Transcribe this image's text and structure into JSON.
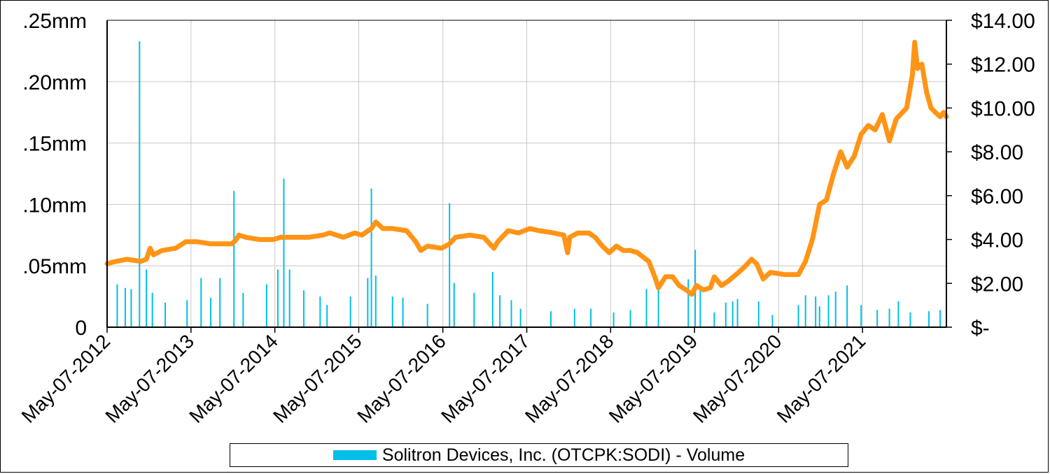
{
  "chart_data": {
    "type": "bar+line",
    "title": "",
    "colors": {
      "volume": "#00BFE8",
      "price": "#FF9416",
      "grid": "#c8c8c8",
      "axis": "#000000"
    },
    "x_range": [
      "2012-05-07",
      "2022-05-07"
    ],
    "x_ticks": [
      "May-07-2012",
      "May-07-2013",
      "May-07-2014",
      "May-07-2015",
      "May-07-2016",
      "May-07-2017",
      "May-07-2018",
      "May-07-2019",
      "May-07-2020",
      "May-07-2021"
    ],
    "y_left": {
      "label": "",
      "ticks": [
        ".25mm",
        ".20mm",
        ".15mm",
        ".10mm",
        ".05mm",
        "0"
      ],
      "range": [
        0,
        0.25
      ],
      "unit": "mm"
    },
    "y_right": {
      "label": "",
      "ticks": [
        "$14.00",
        "$12.00",
        "$10.00",
        "$8.00",
        "$6.00",
        "$4.00",
        "$2.00",
        "$-"
      ],
      "range": [
        0,
        14
      ]
    },
    "legend": {
      "label": "Solitron Devices, Inc. (OTCPK:SODI) - Volume",
      "position": "bottom"
    },
    "series": [
      {
        "name": "Solitron Devices, Inc. (OTCPK:SODI) - Volume",
        "type": "bar",
        "axis": "left",
        "points": [
          [
            "2012-06-20",
            0.035
          ],
          [
            "2012-07-25",
            0.032
          ],
          [
            "2012-08-20",
            0.031
          ],
          [
            "2012-09-25",
            0.233
          ],
          [
            "2012-10-25",
            0.047
          ],
          [
            "2012-11-20",
            0.028
          ],
          [
            "2013-01-15",
            0.02
          ],
          [
            "2013-04-20",
            0.022
          ],
          [
            "2013-06-20",
            0.04
          ],
          [
            "2013-08-01",
            0.024
          ],
          [
            "2013-09-10",
            0.04
          ],
          [
            "2013-11-10",
            0.111
          ],
          [
            "2013-12-20",
            0.028
          ],
          [
            "2014-04-01",
            0.035
          ],
          [
            "2014-05-20",
            0.047
          ],
          [
            "2014-06-15",
            0.121
          ],
          [
            "2014-07-10",
            0.047
          ],
          [
            "2014-09-10",
            0.03
          ],
          [
            "2014-11-20",
            0.025
          ],
          [
            "2014-12-20",
            0.018
          ],
          [
            "2015-04-01",
            0.025
          ],
          [
            "2015-06-15",
            0.04
          ],
          [
            "2015-07-01",
            0.113
          ],
          [
            "2015-07-20",
            0.042
          ],
          [
            "2015-10-01",
            0.025
          ],
          [
            "2015-11-15",
            0.024
          ],
          [
            "2016-03-01",
            0.019
          ],
          [
            "2016-06-05",
            0.101
          ],
          [
            "2016-06-25",
            0.036
          ],
          [
            "2016-09-20",
            0.028
          ],
          [
            "2016-12-10",
            0.045
          ],
          [
            "2017-01-10",
            0.026
          ],
          [
            "2017-03-01",
            0.022
          ],
          [
            "2017-04-10",
            0.015
          ],
          [
            "2017-08-20",
            0.013
          ],
          [
            "2017-12-01",
            0.015
          ],
          [
            "2018-02-10",
            0.015
          ],
          [
            "2018-05-20",
            0.012
          ],
          [
            "2018-08-01",
            0.014
          ],
          [
            "2018-10-10",
            0.031
          ],
          [
            "2018-12-01",
            0.033
          ],
          [
            "2019-04-10",
            0.039
          ],
          [
            "2019-05-10",
            0.063
          ],
          [
            "2019-06-01",
            0.034
          ],
          [
            "2019-08-01",
            0.012
          ],
          [
            "2019-09-20",
            0.02
          ],
          [
            "2019-10-20",
            0.021
          ],
          [
            "2019-11-10",
            0.023
          ],
          [
            "2020-02-10",
            0.021
          ],
          [
            "2020-04-10",
            0.01
          ],
          [
            "2020-08-01",
            0.018
          ],
          [
            "2020-09-01",
            0.026
          ],
          [
            "2020-10-15",
            0.025
          ],
          [
            "2020-11-01",
            0.017
          ],
          [
            "2020-12-10",
            0.026
          ],
          [
            "2021-01-10",
            0.029
          ],
          [
            "2021-03-01",
            0.034
          ],
          [
            "2021-05-01",
            0.018
          ],
          [
            "2021-07-10",
            0.014
          ],
          [
            "2021-09-01",
            0.015
          ],
          [
            "2021-10-10",
            0.021
          ],
          [
            "2021-12-01",
            0.012
          ],
          [
            "2022-02-20",
            0.013
          ],
          [
            "2022-04-10",
            0.014
          ]
        ]
      },
      {
        "name": "",
        "type": "line",
        "axis": "right",
        "points": [
          [
            "2012-05-07",
            2.9
          ],
          [
            "2012-06-15",
            3.0
          ],
          [
            "2012-08-01",
            3.1
          ],
          [
            "2012-10-01",
            3.0
          ],
          [
            "2012-10-25",
            3.1
          ],
          [
            "2012-11-10",
            3.6
          ],
          [
            "2012-11-25",
            3.3
          ],
          [
            "2013-01-01",
            3.5
          ],
          [
            "2013-03-01",
            3.6
          ],
          [
            "2013-04-15",
            3.9
          ],
          [
            "2013-06-01",
            3.9
          ],
          [
            "2013-08-01",
            3.8
          ],
          [
            "2013-10-01",
            3.8
          ],
          [
            "2013-11-01",
            3.8
          ],
          [
            "2013-11-20",
            4.0
          ],
          [
            "2013-12-01",
            4.2
          ],
          [
            "2014-01-01",
            4.1
          ],
          [
            "2014-03-01",
            4.0
          ],
          [
            "2014-05-01",
            4.0
          ],
          [
            "2014-06-01",
            4.1
          ],
          [
            "2014-08-01",
            4.1
          ],
          [
            "2014-10-01",
            4.1
          ],
          [
            "2014-12-01",
            4.2
          ],
          [
            "2015-01-01",
            4.3
          ],
          [
            "2015-03-01",
            4.1
          ],
          [
            "2015-04-20",
            4.3
          ],
          [
            "2015-05-20",
            4.2
          ],
          [
            "2015-07-01",
            4.5
          ],
          [
            "2015-07-20",
            4.8
          ],
          [
            "2015-08-20",
            4.5
          ],
          [
            "2015-10-01",
            4.5
          ],
          [
            "2015-12-01",
            4.4
          ],
          [
            "2016-01-10",
            3.9
          ],
          [
            "2016-02-01",
            3.5
          ],
          [
            "2016-03-01",
            3.7
          ],
          [
            "2016-05-01",
            3.6
          ],
          [
            "2016-06-05",
            3.8
          ],
          [
            "2016-07-01",
            4.1
          ],
          [
            "2016-09-01",
            4.2
          ],
          [
            "2016-11-01",
            4.1
          ],
          [
            "2016-12-15",
            3.6
          ],
          [
            "2017-01-01",
            3.9
          ],
          [
            "2017-02-15",
            4.4
          ],
          [
            "2017-04-01",
            4.3
          ],
          [
            "2017-05-20",
            4.5
          ],
          [
            "2017-07-01",
            4.4
          ],
          [
            "2017-09-01",
            4.3
          ],
          [
            "2017-10-15",
            4.2
          ],
          [
            "2017-11-01",
            3.4
          ],
          [
            "2017-11-10",
            4.1
          ],
          [
            "2017-12-15",
            4.3
          ],
          [
            "2018-02-01",
            4.3
          ],
          [
            "2018-03-01",
            4.1
          ],
          [
            "2018-04-01",
            3.7
          ],
          [
            "2018-05-01",
            3.4
          ],
          [
            "2018-06-01",
            3.7
          ],
          [
            "2018-07-01",
            3.5
          ],
          [
            "2018-08-01",
            3.5
          ],
          [
            "2018-09-01",
            3.4
          ],
          [
            "2018-10-20",
            3.0
          ],
          [
            "2018-11-15",
            2.3
          ],
          [
            "2018-12-01",
            1.8
          ],
          [
            "2019-01-01",
            2.3
          ],
          [
            "2019-02-01",
            2.3
          ],
          [
            "2019-03-01",
            1.9
          ],
          [
            "2019-04-01",
            1.7
          ],
          [
            "2019-04-25",
            1.5
          ],
          [
            "2019-05-15",
            1.9
          ],
          [
            "2019-06-15",
            1.7
          ],
          [
            "2019-07-15",
            1.8
          ],
          [
            "2019-08-01",
            2.3
          ],
          [
            "2019-09-01",
            1.9
          ],
          [
            "2019-10-01",
            2.1
          ],
          [
            "2019-11-15",
            2.5
          ],
          [
            "2019-12-15",
            2.8
          ],
          [
            "2020-01-10",
            3.1
          ],
          [
            "2020-02-01",
            2.9
          ],
          [
            "2020-03-01",
            2.2
          ],
          [
            "2020-04-01",
            2.5
          ],
          [
            "2020-06-01",
            2.4
          ],
          [
            "2020-08-01",
            2.4
          ],
          [
            "2020-09-01",
            3.0
          ],
          [
            "2020-10-01",
            4.0
          ],
          [
            "2020-11-01",
            5.6
          ],
          [
            "2020-12-01",
            5.8
          ],
          [
            "2021-01-01",
            7.0
          ],
          [
            "2021-02-01",
            8.0
          ],
          [
            "2021-03-01",
            7.3
          ],
          [
            "2021-04-01",
            7.8
          ],
          [
            "2021-05-01",
            8.8
          ],
          [
            "2021-06-01",
            9.2
          ],
          [
            "2021-07-01",
            9.0
          ],
          [
            "2021-08-01",
            9.7
          ],
          [
            "2021-09-01",
            8.5
          ],
          [
            "2021-10-01",
            9.5
          ],
          [
            "2021-11-15",
            10.0
          ],
          [
            "2021-12-10",
            11.5
          ],
          [
            "2021-12-20",
            13.0
          ],
          [
            "2022-01-01",
            11.8
          ],
          [
            "2022-01-20",
            12.0
          ],
          [
            "2022-02-10",
            10.7
          ],
          [
            "2022-03-01",
            10.0
          ],
          [
            "2022-03-20",
            9.8
          ],
          [
            "2022-04-10",
            9.6
          ],
          [
            "2022-04-25",
            9.8
          ],
          [
            "2022-05-07",
            9.6
          ]
        ]
      }
    ]
  }
}
